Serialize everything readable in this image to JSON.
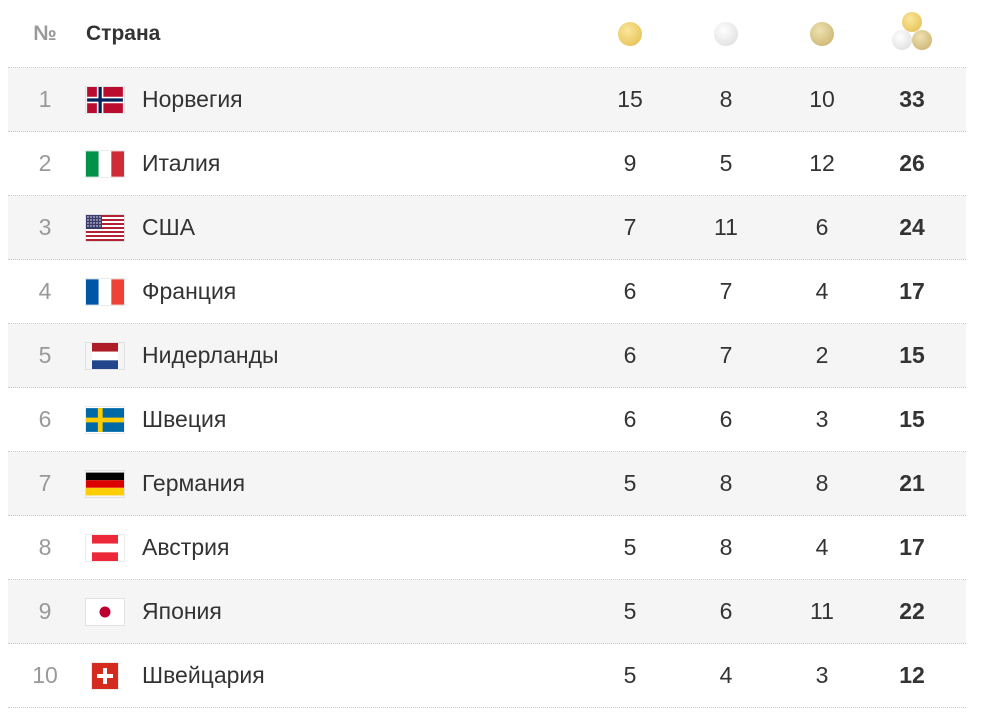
{
  "header": {
    "rank_label": "№",
    "country_label": "Страна",
    "gold_icon": "gold-medal-icon",
    "silver_icon": "silver-medal-icon",
    "bronze_icon": "bronze-medal-icon",
    "total_icon": "total-medals-icon"
  },
  "colors": {
    "gold": "#e9c863",
    "silver": "#e4e4e4",
    "bronze": "#d2bd7d",
    "row_shade": "#f5f5f5",
    "muted_text": "#999999",
    "text": "#333333"
  },
  "rows": [
    {
      "rank": "1",
      "country": "Норвегия",
      "flag": "norway-flag-icon",
      "gold": "15",
      "silver": "8",
      "bronze": "10",
      "total": "33"
    },
    {
      "rank": "2",
      "country": "Италия",
      "flag": "italy-flag-icon",
      "gold": "9",
      "silver": "5",
      "bronze": "12",
      "total": "26"
    },
    {
      "rank": "3",
      "country": "США",
      "flag": "usa-flag-icon",
      "gold": "7",
      "silver": "11",
      "bronze": "6",
      "total": "24"
    },
    {
      "rank": "4",
      "country": "Франция",
      "flag": "france-flag-icon",
      "gold": "6",
      "silver": "7",
      "bronze": "4",
      "total": "17"
    },
    {
      "rank": "5",
      "country": "Нидерланды",
      "flag": "netherlands-flag-icon",
      "gold": "6",
      "silver": "7",
      "bronze": "2",
      "total": "15"
    },
    {
      "rank": "6",
      "country": "Швеция",
      "flag": "sweden-flag-icon",
      "gold": "6",
      "silver": "6",
      "bronze": "3",
      "total": "15"
    },
    {
      "rank": "7",
      "country": "Германия",
      "flag": "germany-flag-icon",
      "gold": "5",
      "silver": "8",
      "bronze": "8",
      "total": "21"
    },
    {
      "rank": "8",
      "country": "Австрия",
      "flag": "austria-flag-icon",
      "gold": "5",
      "silver": "8",
      "bronze": "4",
      "total": "17"
    },
    {
      "rank": "9",
      "country": "Япония",
      "flag": "japan-flag-icon",
      "gold": "5",
      "silver": "6",
      "bronze": "11",
      "total": "22"
    },
    {
      "rank": "10",
      "country": "Швейцария",
      "flag": "switzerland-flag-icon",
      "gold": "5",
      "silver": "4",
      "bronze": "3",
      "total": "12"
    }
  ]
}
